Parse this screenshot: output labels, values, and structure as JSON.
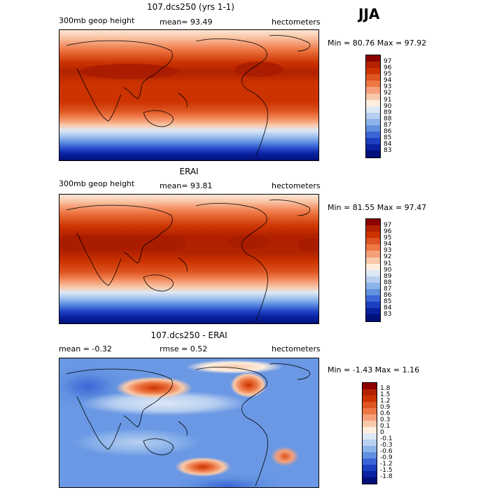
{
  "season": "JJA",
  "panels": [
    {
      "title": "107.dcs250 (yrs 1-1)",
      "left_label": "300mb geop height",
      "center_label": "mean=   93.49",
      "right_label": "hectometers",
      "minmax": "Min =   80.76  Max =   97.92",
      "colorbar": {
        "ticks": [
          "97",
          "96",
          "95",
          "94",
          "93",
          "92",
          "91",
          "90",
          "89",
          "88",
          "87",
          "86",
          "85",
          "84",
          "83"
        ],
        "colors": [
          "#8b0000",
          "#b22200",
          "#cc3300",
          "#dd5522",
          "#ee7744",
          "#f5a07a",
          "#f8c9aa",
          "#fdeede",
          "#dde8f5",
          "#b8cff0",
          "#8cb4ea",
          "#6090e0",
          "#3c66d6",
          "#1e3fc0",
          "#0a22a0",
          "#00107a"
        ]
      }
    },
    {
      "title": "ERAI",
      "left_label": "300mb geop height",
      "center_label": "mean=   93.81",
      "right_label": "hectometers",
      "minmax": "Min =   81.55  Max =   97.47",
      "colorbar": {
        "ticks": [
          "97",
          "96",
          "95",
          "94",
          "93",
          "92",
          "91",
          "90",
          "89",
          "88",
          "87",
          "86",
          "85",
          "84",
          "83"
        ],
        "colors": [
          "#8b0000",
          "#b22200",
          "#cc3300",
          "#dd5522",
          "#ee7744",
          "#f5a07a",
          "#f8c9aa",
          "#fdeede",
          "#dde8f5",
          "#b8cff0",
          "#8cb4ea",
          "#6090e0",
          "#3c66d6",
          "#1e3fc0",
          "#0a22a0",
          "#00107a"
        ]
      }
    },
    {
      "title": "107.dcs250 - ERAI",
      "left_label": "mean =   -0.32",
      "center_label": "rmse =    0.52",
      "right_label": "hectometers",
      "minmax": "Min =  -1.43  Max =    1.16",
      "colorbar": {
        "ticks": [
          "1.8",
          "1.5",
          "1.2",
          "0.9",
          "0.6",
          "0.3",
          "0.1",
          "0",
          "-0.1",
          "-0.3",
          "-0.6",
          "-0.9",
          "-1.2",
          "-1.5",
          "-1.8"
        ],
        "colors": [
          "#8b0000",
          "#b22200",
          "#cc3300",
          "#dd5522",
          "#ee7744",
          "#f5a07a",
          "#f8c9aa",
          "#fdeede",
          "#dde8f5",
          "#b8cff0",
          "#8cb4ea",
          "#6090e0",
          "#3c66d6",
          "#1e3fc0",
          "#0a22a0",
          "#00107a"
        ]
      }
    }
  ]
}
